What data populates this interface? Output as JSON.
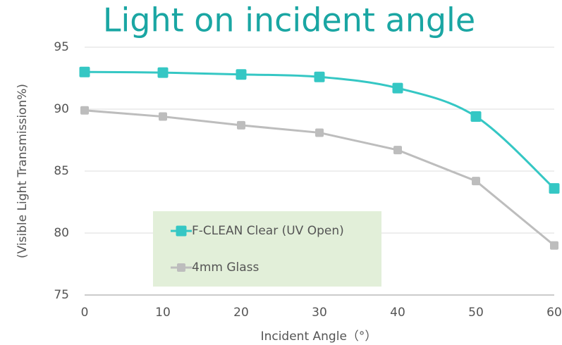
{
  "chart_data": {
    "type": "line",
    "title": "Light on incident angle",
    "x_label": "Incident Angle（°）",
    "y_label": "(Visible Light Transmission%)",
    "x": [
      0,
      10,
      20,
      30,
      40,
      50,
      60
    ],
    "xlim": [
      0,
      60
    ],
    "xticks": [
      0,
      10,
      20,
      30,
      40,
      50,
      60
    ],
    "ylim": [
      75,
      95
    ],
    "yticks": [
      75,
      80,
      85,
      90,
      95
    ],
    "grid": true,
    "legend": "lower left",
    "legend_background": "#e2efd9",
    "series": [
      {
        "name": "F-CLEAN Clear (UV Open)",
        "color": "#35c7c4",
        "smooth": true,
        "values": [
          93.0,
          92.95,
          92.8,
          92.6,
          91.7,
          89.4,
          83.6
        ]
      },
      {
        "name": "4mm Glass",
        "color": "#bdbdbd",
        "smooth": false,
        "values": [
          89.9,
          89.4,
          88.7,
          88.1,
          86.7,
          84.2,
          79.0
        ]
      }
    ]
  }
}
